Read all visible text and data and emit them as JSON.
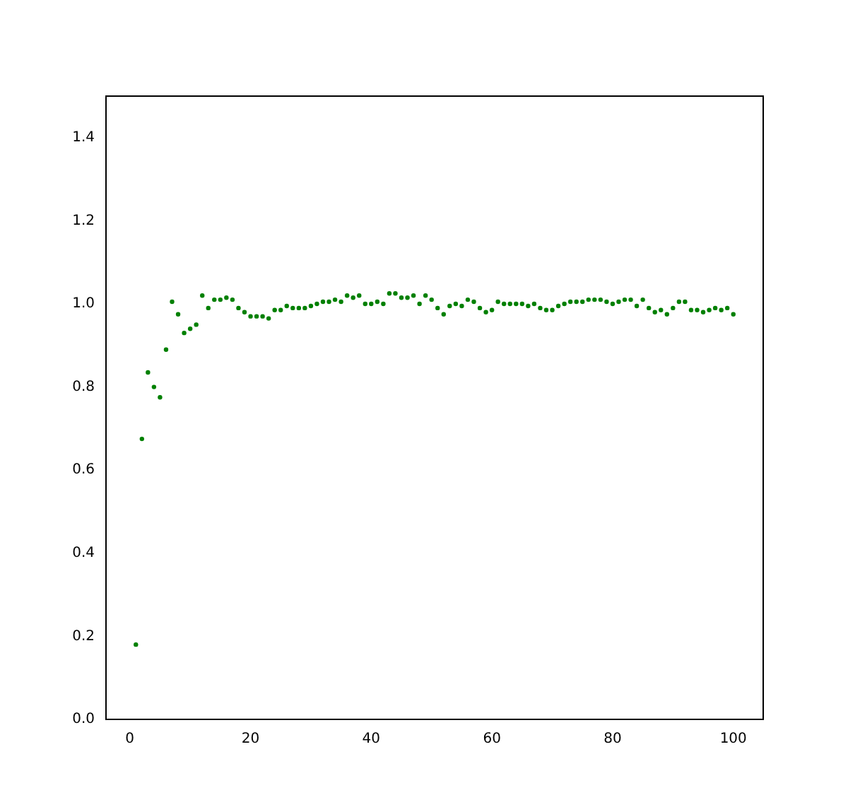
{
  "chart_data": {
    "type": "scatter",
    "marker": "circle",
    "grid": false,
    "legend": false,
    "xlim": [
      -3.95,
      104.95
    ],
    "xticks": [
      0,
      20,
      40,
      60,
      80,
      100
    ],
    "ylim": [
      0,
      1.5
    ],
    "yticks": [
      {
        "value": 0,
        "label": "0.0"
      },
      0.2,
      0.4,
      0.6,
      0.8,
      {
        "value": 1,
        "label": "1.0"
      },
      1.2,
      1.4
    ],
    "x": [
      1,
      2,
      3,
      4,
      5,
      6,
      7,
      8,
      9,
      10,
      11,
      12,
      13,
      14,
      15,
      16,
      17,
      18,
      19,
      20,
      21,
      22,
      23,
      24,
      25,
      26,
      27,
      28,
      29,
      30,
      31,
      32,
      33,
      34,
      35,
      36,
      37,
      38,
      39,
      40,
      41,
      42,
      43,
      44,
      45,
      46,
      47,
      48,
      49,
      50,
      51,
      52,
      53,
      54,
      55,
      56,
      57,
      58,
      59,
      60,
      61,
      62,
      63,
      64,
      65,
      66,
      67,
      68,
      69,
      70,
      71,
      72,
      73,
      74,
      75,
      76,
      77,
      78,
      79,
      80,
      81,
      82,
      83,
      84,
      85,
      86,
      87,
      88,
      89,
      90,
      91,
      92,
      93,
      94,
      95,
      96,
      97,
      98,
      99,
      100
    ],
    "series": [
      {
        "color": "#008000",
        "values": [
          0.18,
          0.675,
          0.835,
          0.8,
          0.775,
          0.89,
          1.005,
          0.975,
          0.93,
          0.94,
          0.95,
          1.02,
          0.99,
          1.01,
          1.01,
          1.015,
          1.01,
          0.99,
          0.98,
          0.97,
          0.97,
          0.97,
          0.965,
          0.985,
          0.985,
          0.995,
          0.99,
          0.99,
          0.99,
          0.995,
          1.0,
          1.005,
          1.005,
          1.01,
          1.005,
          1.02,
          1.015,
          1.02,
          1.0,
          1.0,
          1.005,
          1.0,
          1.025,
          1.025,
          1.015,
          1.015,
          1.02,
          1.0,
          1.02,
          1.01,
          0.99,
          0.975,
          0.995,
          1.0,
          0.995,
          1.01,
          1.005,
          0.99,
          0.98,
          0.985,
          1.005,
          1.0,
          1.0,
          1.0,
          1.0,
          0.995,
          1.0,
          0.99,
          0.985,
          0.985,
          0.995,
          1.0,
          1.005,
          1.005,
          1.005,
          1.01,
          1.01,
          1.01,
          1.005,
          1.0,
          1.005,
          1.01,
          1.01,
          0.995,
          1.01,
          0.99,
          0.98,
          0.985,
          0.975,
          0.99,
          1.005,
          1.005,
          0.985,
          0.985,
          0.98,
          0.985,
          0.99,
          0.985,
          0.99,
          0.975
        ]
      }
    ]
  }
}
